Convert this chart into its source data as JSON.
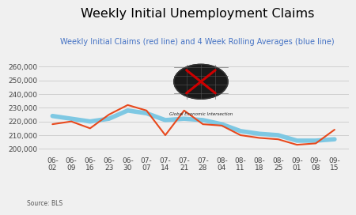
{
  "title": "Weekly Initial Unemployment Claims",
  "subtitle": "Weekly Initial Claims (red line) and 4 Week Rolling Averages (blue line)",
  "source_text": "Source: BLS",
  "x_labels": [
    "06-\n02",
    "06-\n09",
    "06-\n16",
    "06-\n23",
    "06-\n30",
    "07-\n07",
    "07-\n14",
    "07-\n21",
    "07-\n28",
    "08-\n04",
    "08-\n11",
    "08-\n18",
    "08-\n25",
    "09-\n01",
    "09-\n08",
    "09-\n15"
  ],
  "weekly_claims": [
    218000,
    220000,
    215000,
    225000,
    232000,
    228000,
    210000,
    228000,
    218000,
    217000,
    210000,
    208000,
    207000,
    203000,
    204000,
    214000
  ],
  "rolling_avg": [
    224000,
    222000,
    220000,
    222000,
    228000,
    226000,
    221000,
    222000,
    221000,
    218000,
    213000,
    211000,
    210000,
    206000,
    206000,
    207000
  ],
  "ylim": [
    195000,
    270000
  ],
  "yticks": [
    200000,
    210000,
    220000,
    230000,
    240000,
    250000,
    260000
  ],
  "red_color": "#e8491d",
  "blue_color": "#7ec8e3",
  "title_fontsize": 11.5,
  "subtitle_fontsize": 7,
  "tick_fontsize": 6.5,
  "bg_color": "#f0f0f0",
  "grid_color": "#d0d0d0",
  "subtitle_color": "#4472c4",
  "source_color": "#555555"
}
